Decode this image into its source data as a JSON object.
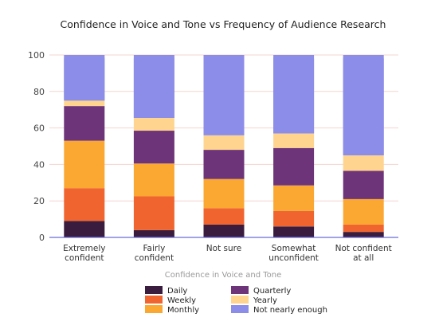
{
  "chart_data": {
    "type": "bar",
    "stacked": true,
    "title": "Confidence in Voice and Tone vs Frequency of Audience Research",
    "xlabel": "Confidence in Voice and Tone",
    "ylabel": "",
    "ylim": [
      0,
      100
    ],
    "yticks": [
      0,
      20,
      40,
      60,
      80,
      100
    ],
    "grid": true,
    "legend_position": "bottom",
    "categories": [
      [
        "Extremely",
        "confident"
      ],
      [
        "Fairly",
        "confident"
      ],
      [
        "Not sure"
      ],
      [
        "Somewhat",
        "unconfident"
      ],
      [
        "Not confident",
        "at all"
      ]
    ],
    "series": [
      {
        "name": "Daily",
        "color": "#3a1d3e",
        "values": [
          9,
          4,
          7,
          6,
          3
        ]
      },
      {
        "name": "Weekly",
        "color": "#f0652f",
        "values": [
          18,
          18.5,
          9,
          8.5,
          4
        ]
      },
      {
        "name": "Monthly",
        "color": "#fba832",
        "values": [
          26,
          18,
          16,
          14,
          14
        ]
      },
      {
        "name": "Quarterly",
        "color": "#6e3479",
        "values": [
          19,
          18,
          16,
          20.5,
          15.5
        ]
      },
      {
        "name": "Yearly",
        "color": "#fed48e",
        "values": [
          3,
          7,
          8,
          8,
          8.5
        ]
      },
      {
        "name": "Not nearly enough",
        "color": "#8c8de8",
        "values": [
          25,
          34.5,
          44,
          43,
          55
        ]
      }
    ]
  }
}
